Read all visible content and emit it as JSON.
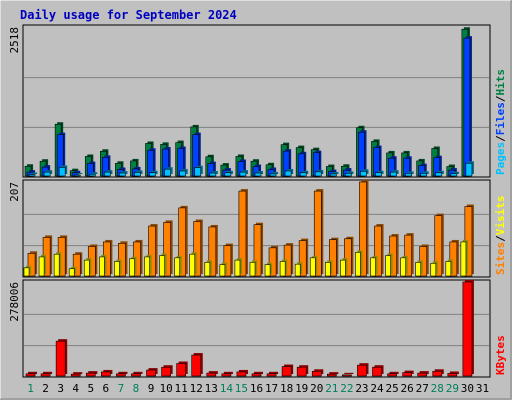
{
  "chart_data": {
    "type": "bar",
    "title": "Daily usage for September 2024",
    "categories": [
      "1",
      "2",
      "3",
      "4",
      "5",
      "6",
      "7",
      "8",
      "9",
      "10",
      "11",
      "12",
      "13",
      "14",
      "15",
      "16",
      "17",
      "18",
      "19",
      "20",
      "21",
      "22",
      "23",
      "24",
      "25",
      "26",
      "27",
      "28",
      "29",
      "30",
      "31"
    ],
    "weekend_days": [
      "1",
      "7",
      "8",
      "14",
      "15",
      "21",
      "22",
      "28",
      "29"
    ],
    "panels": [
      {
        "name": "hits-files-pages",
        "max_label": "2518",
        "ymax": 2518,
        "right_label": [
          "Pages",
          "/",
          "Files",
          "/",
          "Hits"
        ],
        "series": [
          {
            "name": "Hits",
            "color": "#008040",
            "values": [
              165,
              250,
              875,
              90,
              330,
              418,
              215,
              255,
              550,
              535,
              565,
              830,
              325,
              185,
              330,
              250,
              190,
              530,
              480,
              445,
              160,
              165,
              815,
              585,
              390,
              390,
              255,
              465,
              160,
              2480,
              0
            ]
          },
          {
            "name": "Files",
            "color": "#0040ff",
            "values": [
              65,
              150,
              700,
              55,
              210,
              315,
              110,
              120,
              435,
              455,
              465,
              700,
              210,
              100,
              245,
              160,
              110,
              420,
              375,
              395,
              75,
              100,
              740,
              480,
              300,
              300,
              175,
              310,
              100,
              2330,
              0
            ]
          },
          {
            "name": "Pages",
            "color": "#00c0ff",
            "values": [
              25,
              65,
              145,
              18,
              30,
              65,
              50,
              60,
              55,
              115,
              85,
              140,
              50,
              55,
              65,
              50,
              35,
              85,
              55,
              70,
              35,
              45,
              80,
              55,
              65,
              45,
              45,
              55,
              40,
              215,
              0
            ]
          }
        ]
      },
      {
        "name": "visits-sites",
        "max_label": "207",
        "ymax": 207,
        "right_label": [
          "Sites",
          "/",
          "Visits"
        ],
        "series": [
          {
            "name": "Sites",
            "color": "#ff8000",
            "values": [
              50,
              85,
              85,
              48,
              65,
              75,
              72,
              75,
              110,
              118,
              150,
              120,
              108,
              67,
              187,
              113,
              62,
              68,
              78,
              187,
              80,
              82,
              207,
              110,
              88,
              90,
              65,
              133,
              75,
              153,
              0
            ]
          },
          {
            "name": "Visits",
            "color": "#ffff00",
            "values": [
              18,
              42,
              48,
              16,
              35,
              42,
              32,
              38,
              42,
              45,
              40,
              48,
              30,
              25,
              35,
              30,
              25,
              32,
              26,
              40,
              30,
              35,
              52,
              40,
              45,
              40,
              30,
              28,
              32,
              75,
              0
            ]
          }
        ]
      },
      {
        "name": "kbytes",
        "max_label": "278006",
        "ymax": 278006,
        "right_label": [
          "KBytes"
        ],
        "series": [
          {
            "name": "KBytes",
            "color": "#ff0000",
            "values": [
              6500,
              6500,
              103000,
              5500,
              8500,
              12000,
              6500,
              6500,
              17500,
              26000,
              37000,
              62000,
              8500,
              6500,
              12000,
              6500,
              6500,
              28000,
              26000,
              14000,
              5500,
              3500,
              32000,
              26000,
              6500,
              10000,
              8500,
              14000,
              7500,
              278006,
              0
            ]
          }
        ]
      }
    ]
  }
}
